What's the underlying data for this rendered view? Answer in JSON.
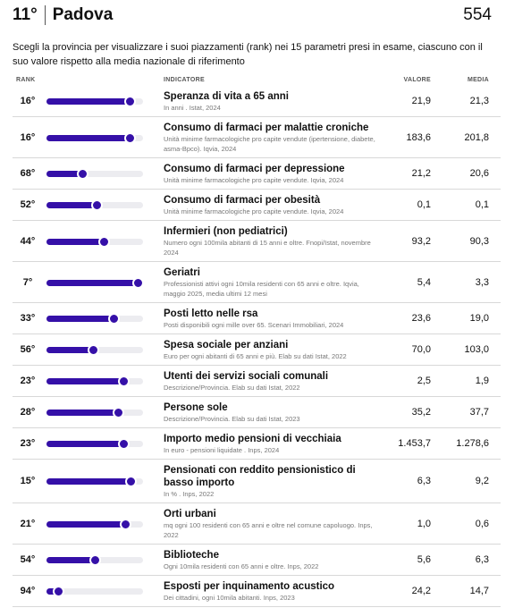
{
  "header": {
    "position": "11°",
    "province": "Padova",
    "score": "554"
  },
  "intro": "Scegli la provincia per visualizzare i suoi piazzamenti (rank) nei 15 parametri presi in esame, ciascuno con il suo valore rispetto alla media nazionale di riferimento",
  "columns": [
    "RANK",
    "INDICATORE",
    "VALORE",
    "MEDIA"
  ],
  "rank_axis": {
    "lim": [
      107,
      1
    ],
    "fill_color": "#3510a8",
    "track_color": "#ececf0"
  },
  "table": {
    "rows": [
      {
        "rank": {
          "value": 16,
          "label": "16°"
        },
        "title": "Speranza di vita a 65 anni",
        "source": "In anni . Istat, 2024",
        "value": "21,9",
        "media": "21,3"
      },
      {
        "rank": {
          "value": 16,
          "label": "16°"
        },
        "title": "Consumo di farmaci per malattie croniche",
        "source": "Unità minime farmacologiche pro capite vendute (ipertensione, diabete, asma-Bpco). Iqvia, 2024",
        "value": "183,6",
        "media": "201,8"
      },
      {
        "rank": {
          "value": 68,
          "label": "68°"
        },
        "title": "Consumo di farmaci per depressione",
        "source": "Unità minime farmacologiche pro capite vendute. Iqvia, 2024",
        "value": "21,2",
        "media": "20,6"
      },
      {
        "rank": {
          "value": 52,
          "label": "52°"
        },
        "title": "Consumo di farmaci per obesità",
        "source": "Unità minime farmacologiche pro capite vendute. Iqvia, 2024",
        "value": "0,1",
        "media": "0,1"
      },
      {
        "rank": {
          "value": 44,
          "label": "44°"
        },
        "title": "Infermieri (non pediatrici)",
        "source": "Numero ogni 100mila abitanti di 15 anni e oltre. Fnopi/Istat, novembre 2024",
        "value": "93,2",
        "media": "90,3"
      },
      {
        "rank": {
          "value": 7,
          "label": "7°"
        },
        "title": "Geriatri",
        "source": "Professionisti attivi ogni 10mila residenti con 65 anni e oltre. Iqvia, maggio 2025, media ultimi 12 mesi",
        "value": "5,4",
        "media": "3,3"
      },
      {
        "rank": {
          "value": 33,
          "label": "33°"
        },
        "title": "Posti letto nelle rsa",
        "source": "Posti disponibili ogni mille over 65. Scenari Immobiliari, 2024",
        "value": "23,6",
        "media": "19,0"
      },
      {
        "rank": {
          "value": 56,
          "label": "56°"
        },
        "title": "Spesa sociale per anziani",
        "source": "Euro per ogni abitanti di 65 anni e più. Elab su dati Istat, 2022",
        "value": "70,0",
        "media": "103,0"
      },
      {
        "rank": {
          "value": 23,
          "label": "23°"
        },
        "title": "Utenti dei servizi sociali comunali",
        "source": "Descrizione/Provincia. Elab su dati Istat, 2022",
        "value": "2,5",
        "media": "1,9"
      },
      {
        "rank": {
          "value": 28,
          "label": "28°"
        },
        "title": "Persone sole",
        "source": "Descrizione/Provincia. Elab su dati Istat, 2023",
        "value": "35,2",
        "media": "37,7"
      },
      {
        "rank": {
          "value": 23,
          "label": "23°"
        },
        "title": "Importo medio pensioni di vecchiaia",
        "source": "In euro - pensioni liquidate . Inps, 2024",
        "value": "1.453,7",
        "media": "1.278,6"
      },
      {
        "rank": {
          "value": 15,
          "label": "15°"
        },
        "title": "Pensionati con reddito pensionistico di basso importo",
        "source": "In % . Inps, 2022",
        "value": "6,3",
        "media": "9,2"
      },
      {
        "rank": {
          "value": 21,
          "label": "21°"
        },
        "title": "Orti urbani",
        "source": "mq ogni 100 residenti con 65 anni e oltre nel comune capoluogo. Inps, 2022",
        "value": "1,0",
        "media": "0,6"
      },
      {
        "rank": {
          "value": 54,
          "label": "54°"
        },
        "title": "Biblioteche",
        "source": "Ogni 10mila residenti con 65 anni e oltre. Inps, 2022",
        "value": "5,6",
        "media": "6,3"
      },
      {
        "rank": {
          "value": 94,
          "label": "94°"
        },
        "title": "Esposti per inquinamento acustico",
        "source": "Dei cittadini, ogni 10mila abitanti. Inps, 2023",
        "value": "24,2",
        "media": "14,7"
      }
    ]
  }
}
